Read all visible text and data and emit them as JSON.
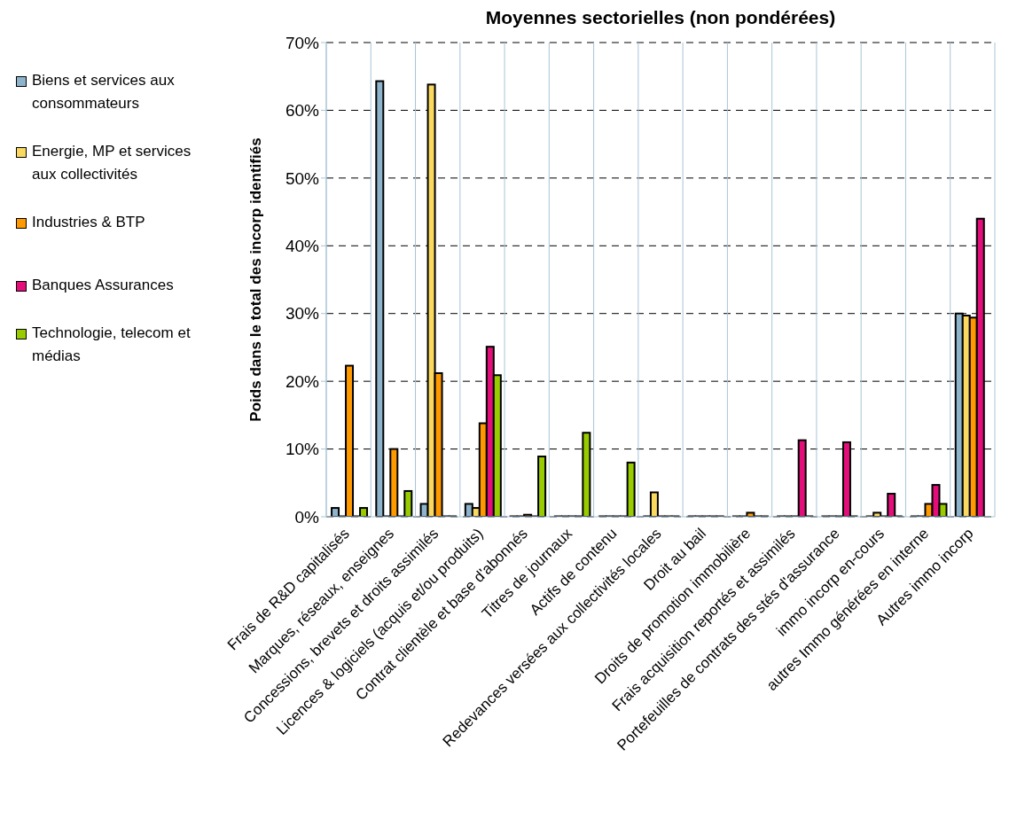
{
  "chart_data": {
    "type": "bar",
    "title": "Moyennes sectorielles (non pondérées)",
    "ylabel": "Poids dans le total des incorp identifiés",
    "categories": [
      "Frais de R&D capitalisés",
      "Marques, réseaux, enseignes",
      "Concessions, brevets et droits assimilés",
      "Licences & logiciels (acquis et/ou produits)",
      "Contrat clientèle et base d'abonnés",
      "Titres de journaux",
      "Actifs de contenu",
      "Redevances versées aux collectivités locales",
      "Droit au bail",
      "Droits de promotion immobilière",
      "Frais acquisition reportés et assimilés",
      "Portefeuilles de contrats des stés d'assurance",
      "immo incorp en-cours",
      "autres Immo générées en interne",
      "Autres immo incorp"
    ],
    "series": [
      {
        "name": "Biens et services aux consommateurs",
        "color": "#8eb4cc",
        "values": [
          1.3,
          64.3,
          1.9,
          1.9,
          0,
          0,
          0,
          0,
          0,
          0,
          0,
          0,
          0,
          0,
          30.0
        ]
      },
      {
        "name": "Energie, MP et services aux collectivités",
        "color": "#fbd860",
        "values": [
          0,
          0,
          63.8,
          1.3,
          0,
          0,
          0,
          3.6,
          0,
          0,
          0,
          0,
          0.6,
          0,
          29.7
        ]
      },
      {
        "name": "Industries & BTP",
        "color": "#ff9900",
        "values": [
          22.3,
          10.0,
          21.2,
          13.8,
          0.3,
          0,
          0,
          0,
          0,
          0.6,
          0,
          0,
          0,
          1.9,
          29.4
        ]
      },
      {
        "name": "Banques Assurances",
        "color": "#e30e7a",
        "values": [
          0,
          0,
          0,
          25.1,
          0,
          0,
          0,
          0,
          0,
          0,
          11.3,
          11.0,
          3.4,
          4.7,
          44.0
        ]
      },
      {
        "name": "Technologie, telecom et médias",
        "color": "#99cc00",
        "values": [
          1.3,
          3.8,
          0,
          20.9,
          8.9,
          12.4,
          8.0,
          0,
          0,
          0,
          0,
          0,
          0,
          1.9,
          null
        ]
      }
    ],
    "ylim": [
      0,
      70
    ],
    "yticks": [
      {
        "value": 0,
        "label": "0%"
      },
      {
        "value": 10,
        "label": "10%"
      },
      {
        "value": 20,
        "label": "20%"
      },
      {
        "value": 30,
        "label": "30%"
      },
      {
        "value": 40,
        "label": "40%"
      },
      {
        "value": 50,
        "label": "50%"
      },
      {
        "value": 60,
        "label": "60%"
      },
      {
        "value": 70,
        "label": "70%"
      }
    ],
    "grid": true,
    "legend": "left"
  }
}
